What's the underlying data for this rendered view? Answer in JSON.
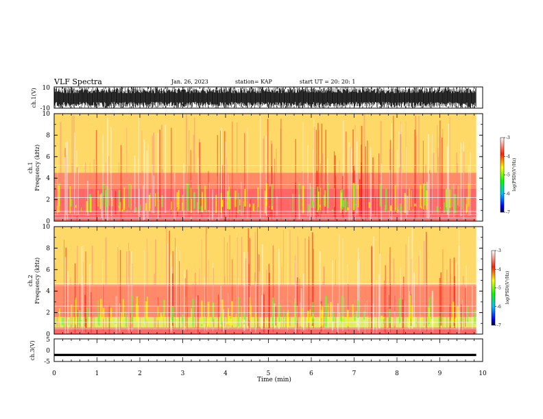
{
  "header": {
    "title": "VLF Spectra",
    "date": "Jan. 26, 2023",
    "station": "station= KAP",
    "start": "start  UT =   20: 20: 1"
  },
  "colors": {
    "spectrogram_background": "#ffffff",
    "low_power": "#ff0000",
    "mid_power": "#ffff00",
    "high_power": "#00ff00",
    "waveform": "#000000"
  },
  "chart_data": [
    {
      "id": "ch1-waveform",
      "type": "line",
      "ylabel": "ch.1(V)",
      "ylim": [
        -10,
        10
      ],
      "yticks": [
        "10",
        "-10"
      ],
      "x_range_min": [
        0,
        9.85
      ],
      "description_values": "dense noise waveform saturating roughly between -4 and 10 V"
    },
    {
      "id": "ch1-spectrogram",
      "type": "heatmap",
      "ylabel_line1": "ch.1",
      "ylabel_line2": "Frequency (kHz)",
      "ylim": [
        0,
        10
      ],
      "yticks": [
        "10",
        "8",
        "6",
        "4",
        "2",
        "0"
      ],
      "xlim": [
        0,
        10
      ],
      "data_end_min": 9.85,
      "colorbar": {
        "label": "log(PSD)(V²/Hz)",
        "ticks": [
          "-3",
          "-4",
          "-5",
          "-6",
          "-7"
        ],
        "range": [
          -7,
          -3
        ]
      },
      "band_profile_khz": [
        {
          "from": 0,
          "to": 1.0,
          "level": -3.6
        },
        {
          "from": 1.0,
          "to": 3.0,
          "level": -3.8
        },
        {
          "from": 3.0,
          "to": 4.5,
          "level": -4.0
        },
        {
          "from": 4.5,
          "to": 10,
          "level": -4.6
        }
      ],
      "tone_lines_khz": [
        0.3,
        0.6,
        0.9,
        2.2,
        3.4,
        5.2
      ]
    },
    {
      "id": "ch2-spectrogram",
      "type": "heatmap",
      "ylabel_line1": "ch.2",
      "ylabel_line2": "Frequency (kHz)",
      "ylim": [
        0,
        10
      ],
      "yticks": [
        "10",
        "8",
        "6",
        "4",
        "2",
        "0"
      ],
      "xlim": [
        0,
        10
      ],
      "data_end_min": 9.85,
      "colorbar": {
        "label": "log(PSD)(V²/Hz)",
        "ticks": [
          "-3",
          "-4",
          "-5",
          "-6",
          "-7"
        ],
        "range": [
          -7,
          -3
        ]
      },
      "band_profile_khz": [
        {
          "from": 0,
          "to": 0.6,
          "level": -3.9
        },
        {
          "from": 0.6,
          "to": 1.6,
          "level": -5.2
        },
        {
          "from": 1.6,
          "to": 3.0,
          "level": -4.3
        },
        {
          "from": 3.0,
          "to": 4.6,
          "level": -4.0
        },
        {
          "from": 4.6,
          "to": 10,
          "level": -4.6
        }
      ],
      "tone_lines_khz": [
        0.5,
        1.1,
        2.0,
        2.6,
        4.5,
        4.7
      ]
    },
    {
      "id": "ch3-waveform",
      "type": "line",
      "ylabel": "ch.3(V)",
      "ylim": [
        -5,
        5
      ],
      "yticks": [
        "5",
        "0",
        "-5"
      ],
      "x_range_min": [
        0,
        9.85
      ],
      "description_values": "flat trace near -2 V"
    }
  ],
  "xaxis": {
    "label": "Time (min)",
    "ticks": [
      "0",
      "1",
      "2",
      "3",
      "4",
      "5",
      "6",
      "7",
      "8",
      "9",
      "10"
    ]
  }
}
